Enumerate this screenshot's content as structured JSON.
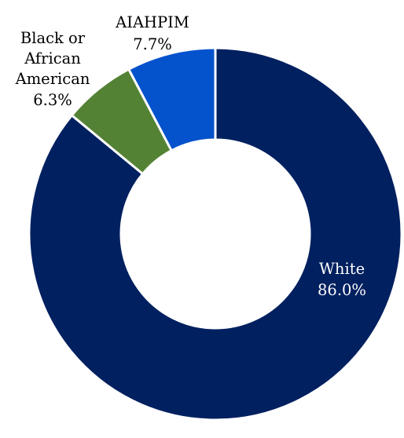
{
  "chart_data": {
    "type": "pie",
    "donut": true,
    "title": "",
    "slices": [
      {
        "name": "White",
        "value": 86.0,
        "value_label": "86.0%",
        "color": "#002060",
        "label_color": "#ffffff"
      },
      {
        "name": "Black or African American",
        "value": 6.3,
        "value_label": "6.3%",
        "color": "#548235",
        "label_color": "#000000"
      },
      {
        "name": "AIAHPIM",
        "value": 7.7,
        "value_label": "7.7%",
        "color": "#0452cc",
        "label_color": "#000000"
      }
    ],
    "labels": {
      "white": {
        "name": "White",
        "value": "86.0%"
      },
      "black": {
        "line1": "Black or",
        "line2": "African",
        "line3": "American",
        "value": "6.3%"
      },
      "aiahpim": {
        "name": "AIAHPIM",
        "value": "7.7%"
      }
    }
  }
}
